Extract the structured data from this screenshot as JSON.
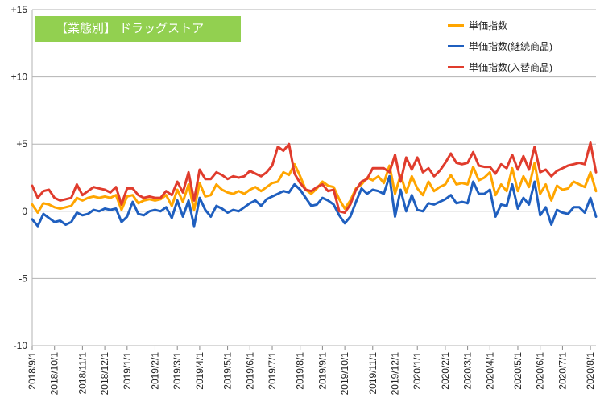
{
  "chart_data": {
    "type": "line",
    "title": "【業態別】 ドラッグストア",
    "xlabel": "",
    "ylabel": "",
    "ylim": [
      -10,
      15
    ],
    "yticks": [
      -10,
      -5,
      0,
      5,
      10,
      15
    ],
    "ytick_labels": [
      "-10",
      "-5",
      "0",
      "+5",
      "+10",
      "+15"
    ],
    "grid": true,
    "legend_position": "top-right",
    "x_labels": [
      "2018/9/1",
      "2018/10/1",
      "2018/11/1",
      "2018/12/1",
      "2019/1/1",
      "2019/2/1",
      "2019/3/1",
      "2019/4/1",
      "2019/5/1",
      "2019/6/1",
      "2019/7/1",
      "2019/8/1",
      "2019/9/1",
      "2019/10/1",
      "2019/11/1",
      "2019/12/1",
      "2020/1/1",
      "2020/2/1",
      "2020/3/1",
      "2020/4/1",
      "2020/5/1",
      "2020/6/1",
      "2020/7/1",
      "2020/8/1"
    ],
    "x_label_index": [
      0,
      4,
      9,
      13,
      17,
      22,
      26,
      30,
      35,
      39,
      43,
      48,
      52,
      56,
      61,
      65,
      69,
      74,
      78,
      82,
      87,
      91,
      95,
      100
    ],
    "series": [
      {
        "name": "単価指数",
        "color": "#ffa500",
        "values": [
          0.5,
          -0.1,
          0.6,
          0.5,
          0.3,
          0.2,
          0.3,
          0.4,
          1.0,
          0.8,
          1.0,
          1.1,
          1.0,
          1.1,
          1.0,
          1.2,
          0.1,
          1.1,
          1.2,
          0.6,
          0.8,
          0.9,
          0.8,
          0.9,
          1.2,
          0.4,
          1.6,
          0.7,
          2.0,
          0.1,
          2.1,
          1.1,
          1.2,
          2.0,
          1.6,
          1.4,
          1.3,
          1.5,
          1.3,
          1.6,
          1.8,
          1.5,
          1.8,
          2.1,
          2.2,
          2.9,
          2.7,
          3.5,
          2.6,
          1.6,
          1.3,
          1.7,
          2.2,
          1.9,
          1.8,
          0.9,
          0.2,
          0.8,
          1.7,
          2.0,
          2.5,
          2.3,
          2.6,
          2.1,
          3.4,
          1.3,
          2.7,
          1.4,
          2.6,
          1.7,
          1.2,
          2.2,
          1.5,
          1.8,
          2.0,
          2.7,
          2.0,
          2.1,
          2.0,
          3.3,
          2.3,
          2.5,
          2.9,
          1.2,
          2.0,
          1.5,
          3.2,
          1.5,
          2.6,
          1.8,
          3.6,
          1.3,
          2.0,
          0.8,
          1.9,
          1.6,
          1.7,
          2.2,
          2.0,
          1.8,
          2.9,
          1.5
        ]
      },
      {
        "name": "単価指数(継続商品)",
        "color": "#1f5fbf",
        "values": [
          -0.6,
          -1.1,
          -0.2,
          -0.5,
          -0.8,
          -0.7,
          -1.0,
          -0.8,
          -0.1,
          -0.3,
          -0.2,
          0.1,
          0.0,
          0.2,
          0.1,
          0.2,
          -0.8,
          -0.4,
          0.7,
          -0.2,
          -0.3,
          0.0,
          0.1,
          0.0,
          0.3,
          -0.5,
          0.8,
          -0.4,
          0.8,
          -1.1,
          1.0,
          0.1,
          -0.4,
          0.4,
          0.2,
          -0.1,
          0.1,
          0.0,
          0.3,
          0.6,
          0.8,
          0.4,
          0.9,
          1.1,
          1.3,
          1.5,
          1.4,
          2.0,
          1.6,
          1.0,
          0.4,
          0.5,
          1.0,
          0.8,
          0.5,
          -0.3,
          -0.9,
          -0.4,
          0.7,
          1.7,
          1.3,
          1.6,
          1.5,
          1.3,
          2.6,
          -0.4,
          1.6,
          0.0,
          1.2,
          0.1,
          0.0,
          0.6,
          0.5,
          0.7,
          0.9,
          1.2,
          0.6,
          0.7,
          0.6,
          2.2,
          1.3,
          1.3,
          1.6,
          -0.4,
          0.5,
          0.4,
          2.0,
          0.2,
          1.0,
          0.5,
          2.2,
          -0.3,
          0.3,
          -1.0,
          0.1,
          -0.1,
          -0.2,
          0.3,
          0.3,
          -0.1,
          1.0,
          -0.4
        ]
      },
      {
        "name": "単価指数(入替商品)",
        "color": "#e03c2d",
        "values": [
          1.9,
          1.0,
          1.5,
          1.6,
          1.0,
          0.8,
          0.9,
          1.0,
          2.0,
          1.2,
          1.5,
          1.8,
          1.7,
          1.6,
          1.4,
          1.8,
          0.5,
          1.7,
          1.7,
          1.2,
          1.0,
          1.1,
          1.0,
          1.0,
          1.5,
          1.2,
          2.2,
          1.4,
          2.9,
          0.8,
          3.1,
          2.4,
          2.4,
          2.9,
          2.7,
          2.4,
          2.6,
          2.5,
          2.6,
          3.0,
          2.8,
          2.6,
          2.9,
          3.4,
          4.8,
          4.5,
          5.0,
          2.8,
          2.1,
          1.6,
          1.5,
          1.8,
          2.0,
          1.5,
          1.6,
          0.0,
          -0.1,
          0.5,
          1.6,
          2.2,
          2.4,
          3.2,
          3.2,
          3.2,
          2.9,
          4.2,
          2.2,
          4.0,
          3.1,
          4.0,
          2.9,
          3.2,
          2.6,
          3.0,
          3.6,
          4.3,
          3.6,
          3.5,
          3.6,
          4.4,
          3.4,
          3.3,
          3.3,
          2.8,
          3.5,
          3.2,
          4.2,
          3.1,
          4.1,
          3.1,
          4.8,
          2.9,
          3.1,
          2.6,
          3.0,
          3.2,
          3.4,
          3.5,
          3.6,
          3.5,
          5.1,
          2.9
        ]
      }
    ]
  }
}
